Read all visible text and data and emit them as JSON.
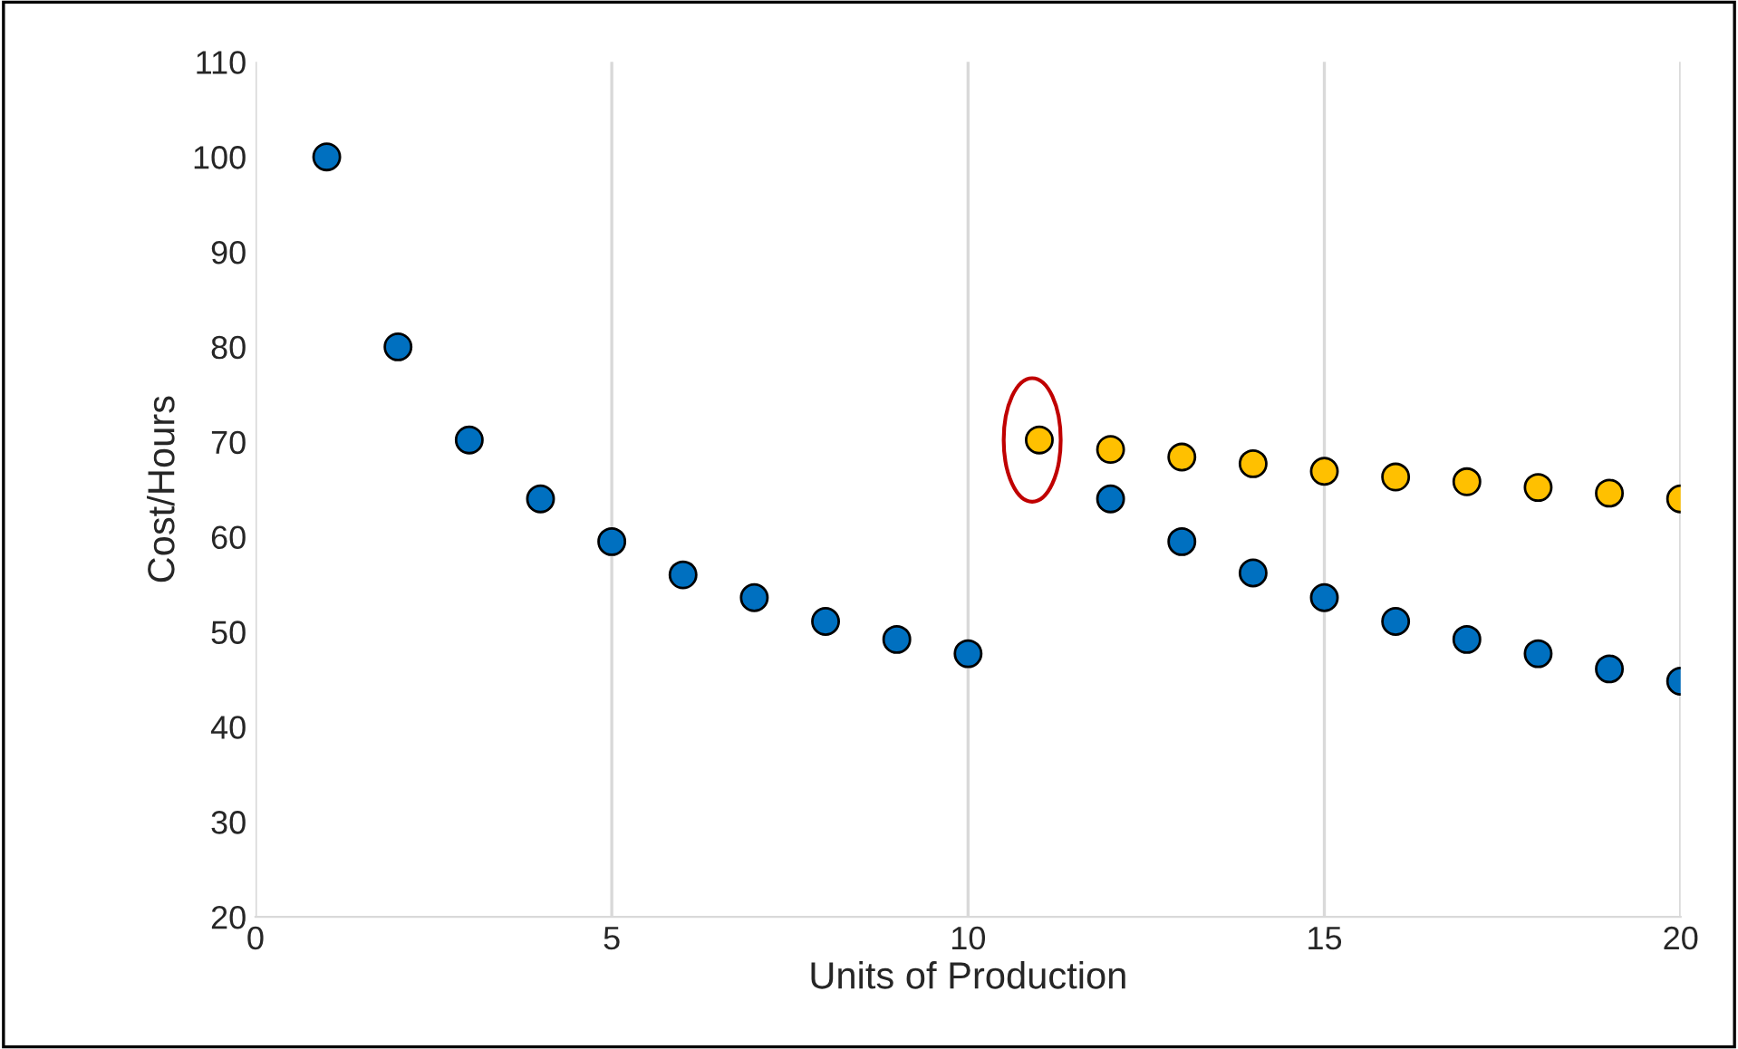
{
  "chart_data": {
    "type": "scatter",
    "xlabel": "Units of Production",
    "ylabel": "Cost/Hours",
    "xlim": [
      0,
      20
    ],
    "xticks": [
      0,
      5,
      10,
      15,
      20
    ],
    "ylim": [
      20,
      110
    ],
    "yticks": [
      20,
      30,
      40,
      50,
      60,
      70,
      80,
      90,
      100,
      110
    ],
    "grid": "x",
    "marker": "circle",
    "series": [
      {
        "color": "#0070c0",
        "x": [
          1,
          2,
          3,
          4,
          5,
          6,
          7,
          8,
          9,
          10,
          11,
          12,
          13,
          14,
          15,
          16,
          17,
          18,
          19,
          20
        ],
        "values": [
          100,
          80,
          70.2,
          64,
          59.5,
          56,
          53.6,
          51.1,
          49.2,
          47.7,
          null,
          64,
          59.5,
          56.2,
          53.6,
          51.1,
          49.2,
          47.7,
          46.1,
          44.8
        ]
      },
      {
        "color": "#ffc000",
        "x": [
          11,
          12,
          13,
          14,
          15,
          16,
          17,
          18,
          19,
          20
        ],
        "values": [
          70.2,
          69.2,
          68.4,
          67.7,
          66.9,
          66.3,
          65.8,
          65.2,
          64.6,
          64.0
        ]
      }
    ]
  }
}
